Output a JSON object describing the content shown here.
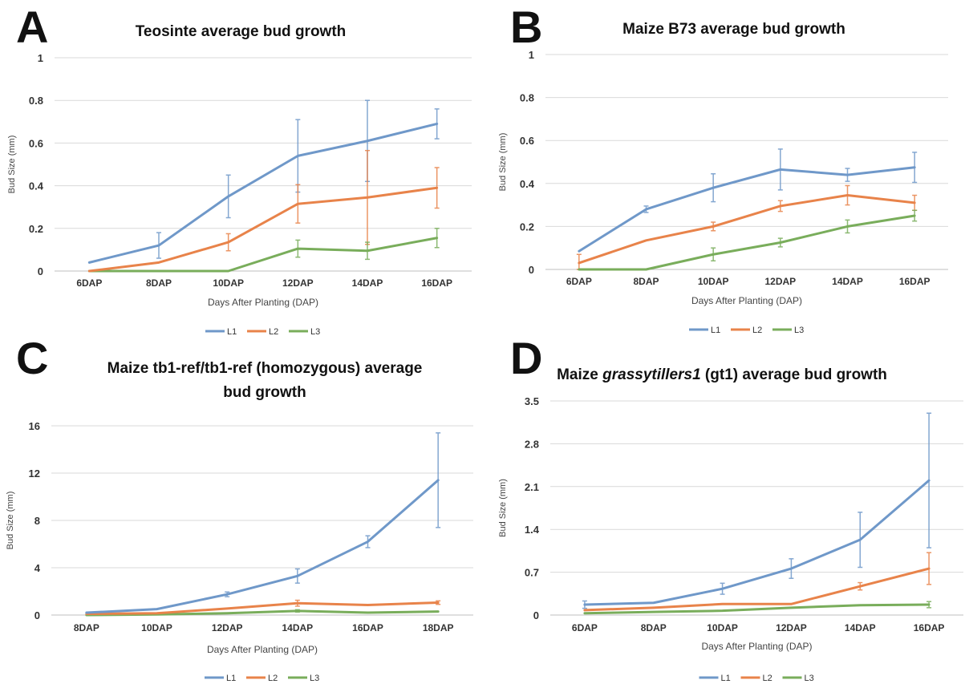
{
  "chart_data": [
    {
      "type": "line",
      "panel_label": "A",
      "title": "Teosinte average bud growth",
      "xlabel": "Days After Planting (DAP)",
      "ylabel": "Bud Size (mm)",
      "categories": [
        "6DAP",
        "8DAP",
        "10DAP",
        "12DAP",
        "14DAP",
        "16DAP"
      ],
      "ylim": [
        0,
        1
      ],
      "yticks": [
        0,
        0.2,
        0.4,
        0.6,
        0.8,
        1
      ],
      "ytick_labels": [
        "0",
        "0.2",
        "0.4",
        "0.6",
        "0.8",
        "1"
      ],
      "grid": true,
      "legend_position": "bottom",
      "series": [
        {
          "name": "L1",
          "color": "#6f98c9",
          "values": [
            0.04,
            0.12,
            0.35,
            0.54,
            0.61,
            0.69
          ],
          "errors": [
            0,
            0.06,
            0.1,
            0.17,
            0.19,
            0.07
          ]
        },
        {
          "name": "L2",
          "color": "#e8834a",
          "values": [
            0.0,
            0.04,
            0.135,
            0.315,
            0.345,
            0.39
          ],
          "errors": [
            0,
            0,
            0.04,
            0.09,
            0.22,
            0.095
          ]
        },
        {
          "name": "L3",
          "color": "#79ad5b",
          "values": [
            0.0,
            0.0,
            0.0,
            0.105,
            0.095,
            0.155
          ],
          "errors": [
            0,
            0,
            0,
            0.04,
            0.04,
            0.045
          ]
        }
      ]
    },
    {
      "type": "line",
      "panel_label": "B",
      "title": "Maize B73 average bud growth",
      "xlabel": "Days After Planting (DAP)",
      "ylabel": "Bud Size (mm)",
      "categories": [
        "6DAP",
        "8DAP",
        "10DAP",
        "12DAP",
        "14DAP",
        "16DAP"
      ],
      "ylim": [
        0,
        1
      ],
      "yticks": [
        0,
        0.2,
        0.4,
        0.6,
        0.8,
        1
      ],
      "ytick_labels": [
        "0",
        "0.2",
        "0.4",
        "0.6",
        "0.8",
        "1"
      ],
      "grid": true,
      "legend_position": "bottom",
      "series": [
        {
          "name": "L1",
          "color": "#6f98c9",
          "values": [
            0.085,
            0.28,
            0.38,
            0.465,
            0.44,
            0.475
          ],
          "errors": [
            0,
            0.015,
            0.065,
            0.095,
            0.03,
            0.07
          ]
        },
        {
          "name": "L2",
          "color": "#e8834a",
          "values": [
            0.03,
            0.135,
            0.2,
            0.295,
            0.345,
            0.31
          ],
          "errors": [
            0.04,
            0,
            0.02,
            0.025,
            0.045,
            0.035
          ]
        },
        {
          "name": "L3",
          "color": "#79ad5b",
          "values": [
            0.0,
            0.0,
            0.07,
            0.125,
            0.2,
            0.25
          ],
          "errors": [
            0,
            0,
            0.03,
            0.02,
            0.03,
            0.025
          ]
        }
      ]
    },
    {
      "type": "line",
      "panel_label": "C",
      "title": "Maize tb1-ref/tb1-ref (homozygous) average bud growth",
      "title_lines": [
        "Maize tb1-ref/tb1-ref (homozygous) average",
        "bud growth"
      ],
      "xlabel": "Days After Planting (DAP)",
      "ylabel": "Bud Size (mm)",
      "categories": [
        "8DAP",
        "10DAP",
        "12DAP",
        "14DAP",
        "16DAP",
        "18DAP"
      ],
      "ylim": [
        0,
        16
      ],
      "yticks": [
        0,
        4,
        8,
        12,
        16
      ],
      "ytick_labels": [
        "0",
        "4",
        "8",
        "12",
        "16"
      ],
      "grid": true,
      "legend_position": "bottom",
      "series": [
        {
          "name": "L1",
          "color": "#6f98c9",
          "values": [
            0.2,
            0.5,
            1.75,
            3.3,
            6.2,
            11.4
          ],
          "errors": [
            0,
            0,
            0.2,
            0.6,
            0.5,
            4.0
          ]
        },
        {
          "name": "L2",
          "color": "#e8834a",
          "values": [
            0.1,
            0.15,
            0.55,
            1.0,
            0.85,
            1.05
          ],
          "errors": [
            0,
            0,
            0,
            0.25,
            0,
            0.15
          ]
        },
        {
          "name": "L3",
          "color": "#79ad5b",
          "values": [
            0.0,
            0.05,
            0.15,
            0.35,
            0.2,
            0.3
          ],
          "errors": [
            0,
            0,
            0,
            0.1,
            0,
            0
          ]
        }
      ]
    },
    {
      "type": "line",
      "panel_label": "D",
      "title": "Maize grassytillers1 (gt1) average bud growth",
      "title_parts": [
        {
          "text": "Maize ",
          "italic": false
        },
        {
          "text": "grassytillers1",
          "italic": true
        },
        {
          "text": " (gt1) average bud growth",
          "italic": false
        }
      ],
      "xlabel": "Days After Planting (DAP)",
      "ylabel": "Bud Size (mm)",
      "categories": [
        "6DAP",
        "8DAP",
        "10DAP",
        "12DAP",
        "14DAP",
        "16DAP"
      ],
      "ylim": [
        0,
        3.5
      ],
      "yticks": [
        0,
        0.7,
        1.4,
        2.1,
        2.8,
        3.5
      ],
      "ytick_labels": [
        "0",
        "0.7",
        "1.4",
        "2.1",
        "2.8",
        "3.5"
      ],
      "grid": true,
      "legend_position": "bottom",
      "series": [
        {
          "name": "L1",
          "color": "#6f98c9",
          "values": [
            0.17,
            0.2,
            0.43,
            0.76,
            1.23,
            2.2
          ],
          "errors": [
            0.06,
            0,
            0.09,
            0.16,
            0.45,
            1.1
          ]
        },
        {
          "name": "L2",
          "color": "#e8834a",
          "values": [
            0.08,
            0.12,
            0.18,
            0.18,
            0.47,
            0.76
          ],
          "errors": [
            0,
            0,
            0,
            0,
            0.06,
            0.26
          ]
        },
        {
          "name": "L3",
          "color": "#79ad5b",
          "values": [
            0.03,
            0.05,
            0.07,
            0.12,
            0.16,
            0.17
          ],
          "errors": [
            0,
            0,
            0,
            0,
            0,
            0.05
          ]
        }
      ]
    }
  ]
}
